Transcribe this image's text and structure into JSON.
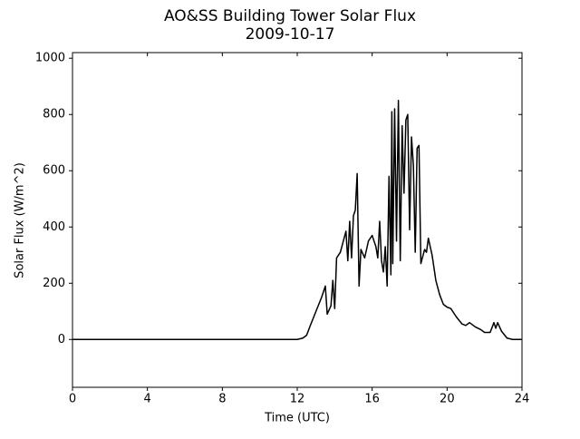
{
  "chart_data": {
    "type": "line",
    "title": "AO&SS Building Tower Solar Flux",
    "subtitle": "2009-10-17",
    "xlabel": "Time (UTC)",
    "ylabel": "Solar Flux (W/m^2)",
    "x": [
      0,
      12,
      12.3,
      12.5,
      12.7,
      13,
      13.3,
      13.5,
      13.6,
      13.8,
      13.9,
      14.0,
      14.1,
      14.3,
      14.5,
      14.6,
      14.7,
      14.8,
      14.9,
      15.0,
      15.1,
      15.2,
      15.3,
      15.4,
      15.6,
      15.8,
      16.0,
      16.2,
      16.3,
      16.4,
      16.5,
      16.6,
      16.7,
      16.8,
      16.9,
      17.0,
      17.05,
      17.1,
      17.2,
      17.3,
      17.4,
      17.5,
      17.6,
      17.7,
      17.8,
      17.9,
      18.0,
      18.1,
      18.2,
      18.3,
      18.4,
      18.5,
      18.6,
      18.8,
      18.9,
      19.0,
      19.2,
      19.4,
      19.6,
      19.8,
      20.0,
      20.2,
      20.5,
      20.8,
      21.0,
      21.2,
      21.5,
      21.8,
      22.0,
      22.3,
      22.5,
      22.6,
      22.7,
      22.9,
      23.2,
      23.5,
      24
    ],
    "values": [
      0,
      0,
      5,
      15,
      50,
      100,
      150,
      190,
      90,
      120,
      210,
      110,
      290,
      310,
      360,
      385,
      280,
      420,
      290,
      440,
      460,
      590,
      190,
      320,
      290,
      350,
      370,
      330,
      290,
      420,
      280,
      240,
      330,
      190,
      580,
      230,
      810,
      270,
      820,
      350,
      850,
      280,
      760,
      520,
      780,
      800,
      390,
      720,
      620,
      310,
      680,
      690,
      270,
      320,
      310,
      360,
      300,
      210,
      160,
      125,
      115,
      110,
      80,
      55,
      50,
      60,
      45,
      35,
      25,
      25,
      60,
      40,
      60,
      30,
      5,
      0,
      0
    ],
    "color": "#000000",
    "xlim": [
      0,
      24
    ],
    "xticks": [
      0,
      4,
      8,
      12,
      16,
      20,
      24
    ],
    "ylim": [
      -170,
      1020
    ],
    "yticks": [
      0,
      200,
      400,
      600,
      800,
      1000
    ]
  }
}
